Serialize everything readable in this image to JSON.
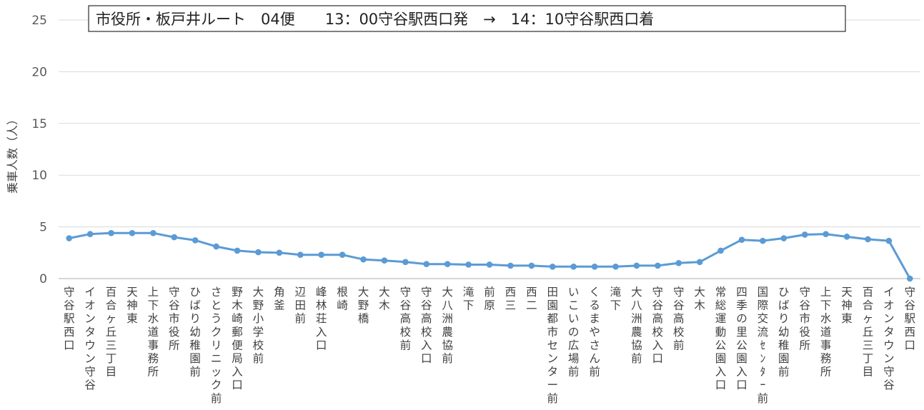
{
  "chart_data": {
    "type": "line",
    "title": "市役所・板戸井ルート　04便　　13：00守谷駅西口発　→　14：10守谷駅西口着",
    "xlabel": "",
    "ylabel": "乗車人数（人）",
    "ylim": [
      0,
      25
    ],
    "yticks": [
      0,
      5,
      10,
      15,
      20,
      25
    ],
    "grid": true,
    "legend": "none",
    "colors": {
      "line": "#5B9BD5",
      "grid": "#D9D9D9",
      "axis": "#BFBFBF"
    },
    "categories": [
      "守谷駅西口",
      "イオンタウン守谷",
      "百合ヶ丘三丁目",
      "天神東",
      "上下水道事務所",
      "守谷市役所",
      "ひばり幼稚園前",
      "さとうクリニック前",
      "野木崎郵便局入口",
      "大野小学校前",
      "角釜",
      "辺田前",
      "峰林荘入口",
      "根崎",
      "大野橋",
      "大木",
      "守谷高校前",
      "守谷高校入口",
      "大八洲農協前",
      "滝下",
      "前原",
      "西三",
      "西二",
      "田園都市センター前",
      "いこいの広場前",
      "くるまやさん前",
      "滝下",
      "大八洲農協前",
      "守谷高校入口",
      "守谷高校前",
      "大木",
      "常総運動公園入口",
      "四季の里公園入口",
      "国際交流ｾﾝﾀｰ前",
      "ひばり幼稚園前",
      "守谷市役所",
      "上下水道事務所",
      "天神東",
      "百合ヶ丘三丁目",
      "イオンタウン守谷",
      "守谷駅西口"
    ],
    "series": [
      {
        "values": [
          3.9,
          4.3,
          4.4,
          4.4,
          4.4,
          4.0,
          3.7,
          3.1,
          2.7,
          2.55,
          2.5,
          2.3,
          2.3,
          2.3,
          1.85,
          1.75,
          1.6,
          1.4,
          1.4,
          1.35,
          1.35,
          1.25,
          1.25,
          1.15,
          1.15,
          1.15,
          1.15,
          1.25,
          1.25,
          1.5,
          1.6,
          2.7,
          3.75,
          3.65,
          3.9,
          4.25,
          4.3,
          4.05,
          3.8,
          3.65,
          0.0
        ]
      }
    ]
  }
}
